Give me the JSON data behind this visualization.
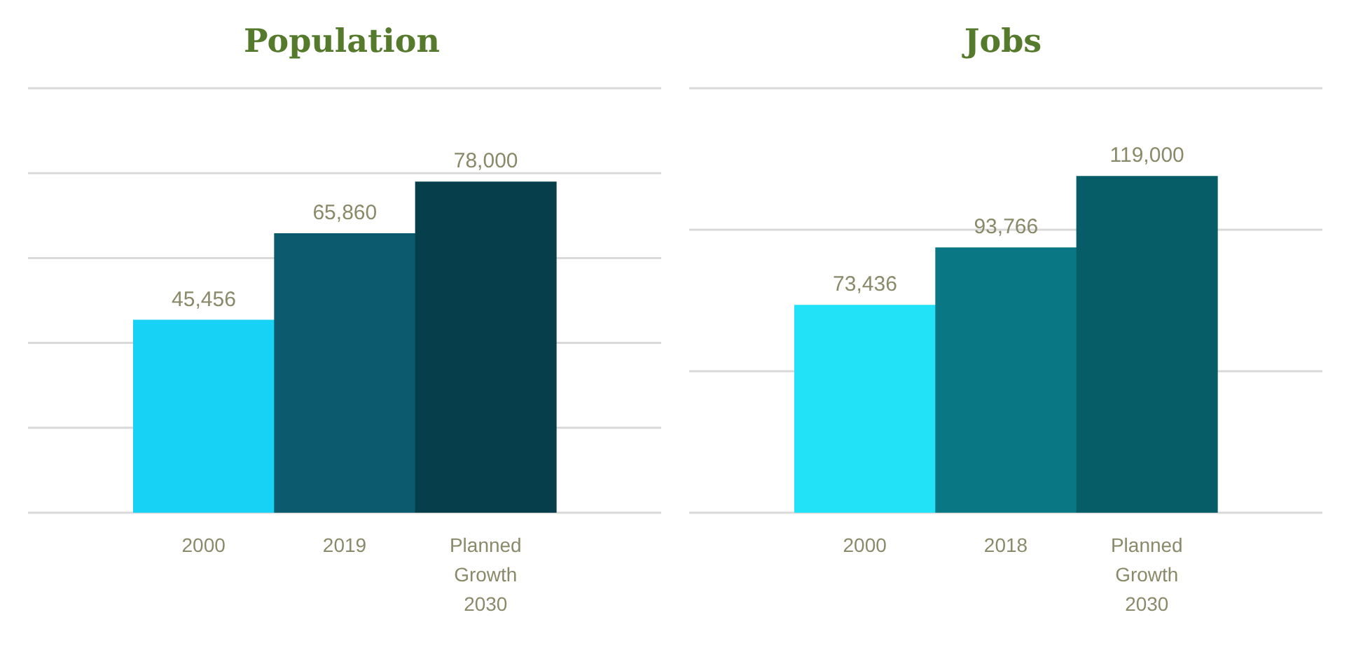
{
  "chart_data": [
    {
      "type": "bar",
      "title": "Population",
      "categories": [
        "2000",
        "2019",
        "Planned Growth 2030"
      ],
      "values": [
        45456,
        65860,
        78000
      ],
      "value_labels": [
        "45,456",
        "65,860",
        "78,000"
      ],
      "colors": [
        "#18d2f6",
        "#0b5a6d",
        "#073e4b"
      ],
      "ylim": [
        0,
        100000
      ],
      "yticks": [
        {
          "value": 0,
          "label": null
        },
        {
          "value": 20000,
          "label": null
        },
        {
          "value": 40000,
          "label": null
        },
        {
          "value": 60000,
          "label": null
        },
        {
          "value": 80000,
          "label": null
        },
        {
          "value": 100000,
          "label": null
        }
      ],
      "grid": "y",
      "tick_labels": "x"
    },
    {
      "type": "bar",
      "title": "Jobs",
      "categories": [
        "2000",
        "2018",
        "Planned Growth 2030"
      ],
      "values": [
        73436,
        93766,
        119000
      ],
      "value_labels": [
        "73,436",
        "93,766",
        "119,000"
      ],
      "colors": [
        "#22e2f8",
        "#0a7884",
        "#075d67"
      ],
      "ylim": [
        0,
        150000
      ],
      "yticks": [
        {
          "value": 0,
          "label": null
        },
        {
          "value": 50000,
          "label": null
        },
        {
          "value": 100000,
          "label": null
        },
        {
          "value": 150000,
          "label": null
        }
      ],
      "grid": "y",
      "tick_labels": "x"
    }
  ]
}
